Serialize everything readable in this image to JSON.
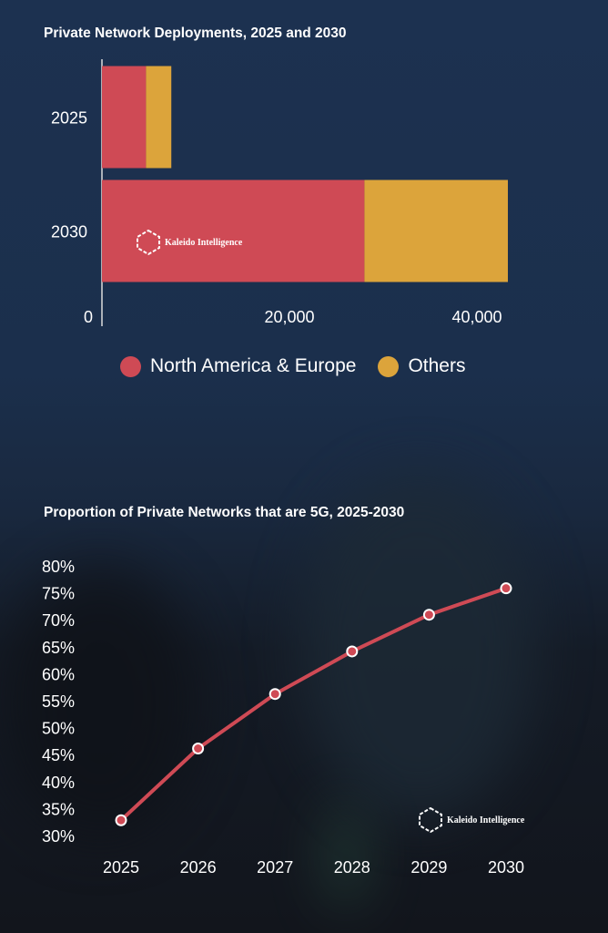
{
  "colors": {
    "north_america_europe": "#cf4a55",
    "others": "#dca43b",
    "line": "#cf4a55",
    "axis": "#dcdcdc"
  },
  "logo": {
    "text": "Kaleido Intelligence",
    "icon": "hexagon-logo-icon"
  },
  "chart_data": [
    {
      "type": "bar",
      "orientation": "horizontal",
      "stacked": true,
      "title": "Private Network Deployments, 2025 and 2030",
      "categories": [
        "2025",
        "2030"
      ],
      "series": [
        {
          "name": "North America & Europe",
          "values": [
            4700,
            28000
          ]
        },
        {
          "name": "Others",
          "values": [
            2700,
            15300
          ]
        }
      ],
      "xlim": [
        0,
        45000
      ],
      "xticks": [
        0,
        20000,
        40000
      ],
      "xtick_labels": [
        "0",
        "20,000",
        "40,000"
      ],
      "legend": "bottom",
      "grid": false
    },
    {
      "type": "line",
      "title": "Proportion of Private Networks that are 5G, 2025-2030",
      "x": [
        "2025",
        "2026",
        "2027",
        "2028",
        "2029",
        "2030"
      ],
      "series": [
        {
          "values": [
            33,
            46.3,
            56.4,
            64.3,
            71.1,
            76
          ]
        }
      ],
      "ylim": [
        30,
        80
      ],
      "yticks": [
        30,
        35,
        40,
        45,
        50,
        55,
        60,
        65,
        70,
        75,
        80
      ],
      "ytick_labels": [
        "30%",
        "35%",
        "40%",
        "45%",
        "50%",
        "55%",
        "60%",
        "65%",
        "70%",
        "75%",
        "80%"
      ],
      "grid": false
    }
  ]
}
